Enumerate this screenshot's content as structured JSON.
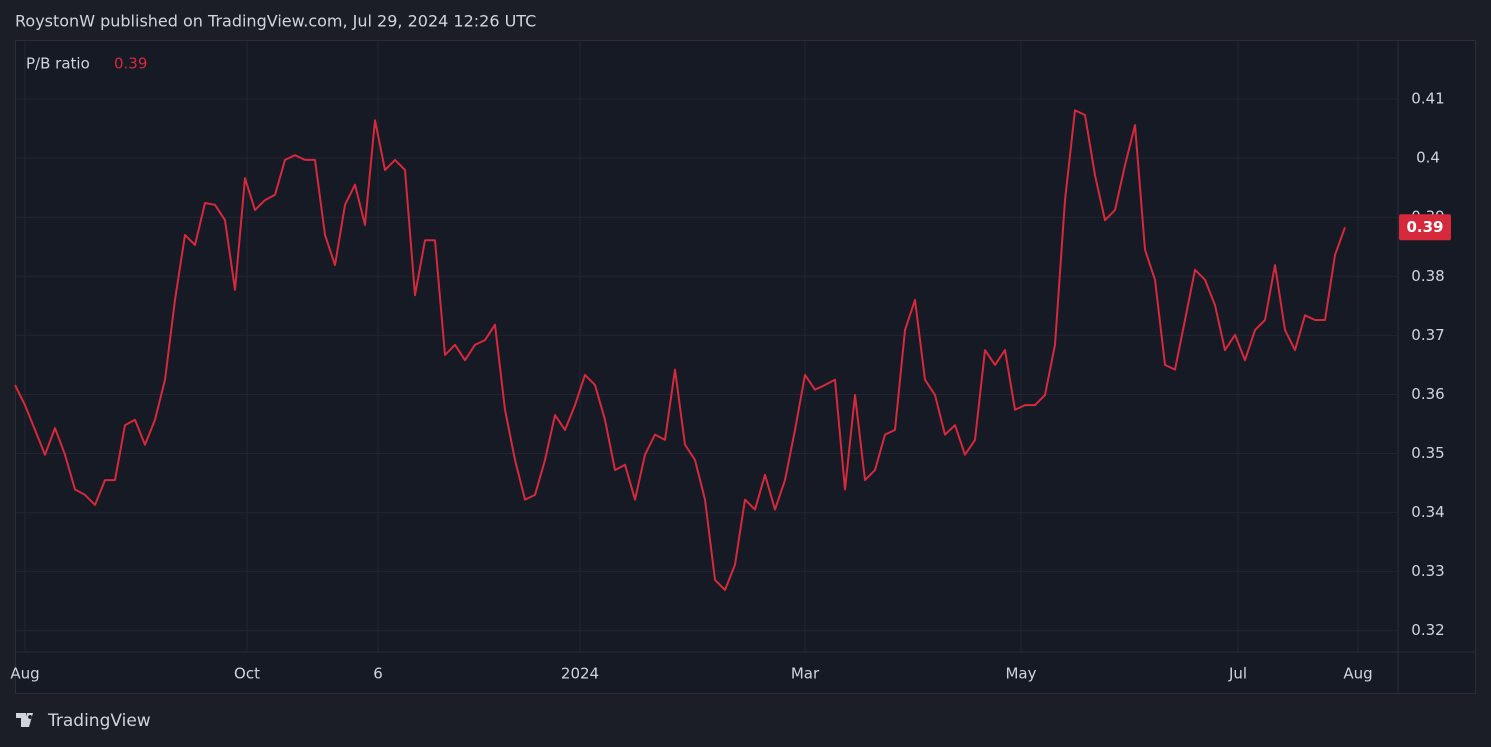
{
  "header": {
    "text": "RoystonW published on TradingView.com, Jul 29, 2024 12:26 UTC"
  },
  "footer": {
    "brand": "TradingView"
  },
  "chart_data": {
    "type": "line",
    "legend_value": "0.39",
    "series": [
      {
        "name": "P/B ratio",
        "color": "#d6293c",
        "values": [
          0.3616,
          0.3582,
          0.354,
          0.3498,
          0.3543,
          0.3498,
          0.3439,
          0.343,
          0.3413,
          0.3455,
          0.3455,
          0.3548,
          0.3557,
          0.3515,
          0.3557,
          0.3625,
          0.376,
          0.387,
          0.3853,
          0.3924,
          0.3921,
          0.3895,
          0.3777,
          0.3966,
          0.3912,
          0.3929,
          0.3938,
          0.3997,
          0.4005,
          0.3997,
          0.3997,
          0.387,
          0.3819,
          0.3921,
          0.3955,
          0.3887,
          0.4064,
          0.398,
          0.3997,
          0.398,
          0.3768,
          0.3861,
          0.3861,
          0.3667,
          0.3684,
          0.3658,
          0.3684,
          0.3692,
          0.3718,
          0.3574,
          0.3489,
          0.3422,
          0.343,
          0.3489,
          0.3565,
          0.354,
          0.3582,
          0.3633,
          0.3616,
          0.3557,
          0.3472,
          0.3481,
          0.3422,
          0.3498,
          0.3532,
          0.3523,
          0.3642,
          0.3515,
          0.3489,
          0.3422,
          0.3286,
          0.3269,
          0.3312,
          0.3422,
          0.3405,
          0.3464,
          0.3405,
          0.3455,
          0.354,
          0.3633,
          0.3608,
          0.3616,
          0.3625,
          0.3439,
          0.3599,
          0.3455,
          0.3472,
          0.3532,
          0.354,
          0.3709,
          0.376,
          0.3625,
          0.3599,
          0.3532,
          0.3548,
          0.3498,
          0.3523,
          0.3675,
          0.365,
          0.3675,
          0.3574,
          0.3582,
          0.3582,
          0.3599,
          0.3684,
          0.3929,
          0.4081,
          0.4073,
          0.3971,
          0.3895,
          0.3912,
          0.3988,
          0.4056,
          0.3845,
          0.3794,
          0.365,
          0.3642,
          0.3726,
          0.3811,
          0.3794,
          0.3751,
          0.3675,
          0.3701,
          0.3658,
          0.3709,
          0.3726,
          0.3819,
          0.3709,
          0.3675,
          0.3734,
          0.3726,
          0.3726,
          0.3836,
          0.3883
        ]
      }
    ],
    "ylim": [
      0.3164,
      0.42
    ],
    "yticks": [
      0.32,
      0.33,
      0.34,
      0.35,
      0.36,
      0.37,
      0.38,
      0.39,
      0.4,
      0.41
    ],
    "xlim": [
      0,
      138.3
    ],
    "xticks": [
      {
        "value": 1,
        "label": "Aug"
      },
      {
        "value": 23.2,
        "label": "Oct"
      },
      {
        "value": 36.3,
        "label": "6"
      },
      {
        "value": 56.5,
        "label": "2024"
      },
      {
        "value": 79,
        "label": "Mar"
      },
      {
        "value": 100.6,
        "label": "May"
      },
      {
        "value": 122.3,
        "label": "Jul"
      },
      {
        "value": 134.3,
        "label": "Aug"
      }
    ],
    "grid": true
  }
}
